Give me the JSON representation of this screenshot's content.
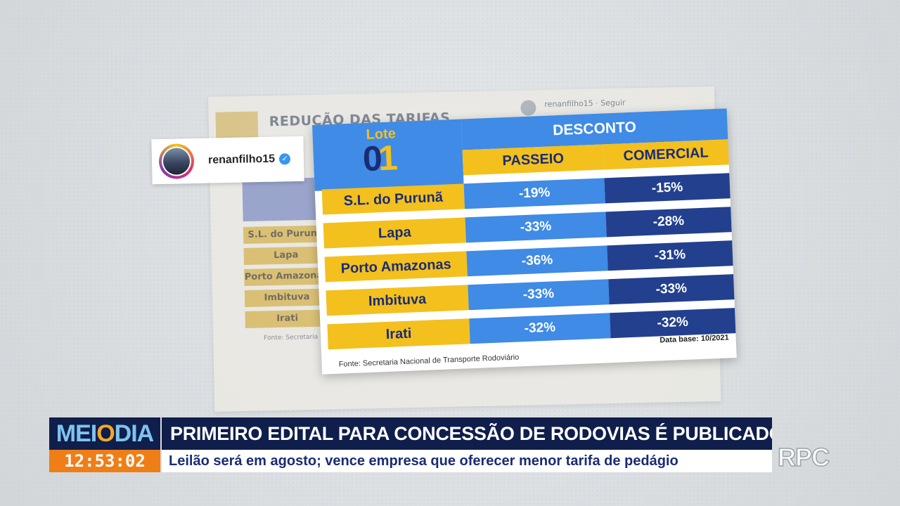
{
  "background_post": {
    "title": "REDUÇÃO DAS TARIFAS",
    "account": "renanfilho15",
    "follow": "Seguir",
    "lote": "Lote 01",
    "rows": [
      "S.L. do Purunã",
      "Lapa",
      "Porto Amazonas",
      "Imbituva",
      "Irati"
    ],
    "fonte": "Fonte: Secretaria Nacional"
  },
  "instagram_tag": {
    "username": "renanfilho15",
    "verified": true
  },
  "table": {
    "lote_label": "Lote",
    "lote_number": "01",
    "desconto_header": "DESCONTO",
    "columns": [
      "PASSEIO",
      "COMERCIAL"
    ],
    "rows": [
      {
        "location": "S.L. do Purunã",
        "passeio": "-19%",
        "comercial": "-15%"
      },
      {
        "location": "Lapa",
        "passeio": "-33%",
        "comercial": "-28%"
      },
      {
        "location": "Porto Amazonas",
        "passeio": "-36%",
        "comercial": "-31%"
      },
      {
        "location": "Imbituva",
        "passeio": "-33%",
        "comercial": "-33%"
      },
      {
        "location": "Irati",
        "passeio": "-32%",
        "comercial": "-32%"
      }
    ],
    "data_base": "Data base: 10/2021",
    "fonte": "Fonte: Secretaria Nacional de Transporte Rodoviário"
  },
  "lower_third": {
    "program_logo_a": "MEI",
    "program_logo_o": "O",
    "program_logo_b": "DIA",
    "time": "12:53:02",
    "headline": "PRIMEIRO EDITAL PARA CONCESSÃO DE RODOVIAS É PUBLICADO",
    "subheadline": "Leilão será em agosto; vence empresa que oferecer menor tarifa de pedágio"
  },
  "channel_logo": "RPC",
  "colors": {
    "accent_blue": "#3f8be6",
    "dark_blue": "#23408f",
    "yellow": "#f3c01e",
    "navy": "#0f1e4a",
    "orange": "#f07e17"
  }
}
